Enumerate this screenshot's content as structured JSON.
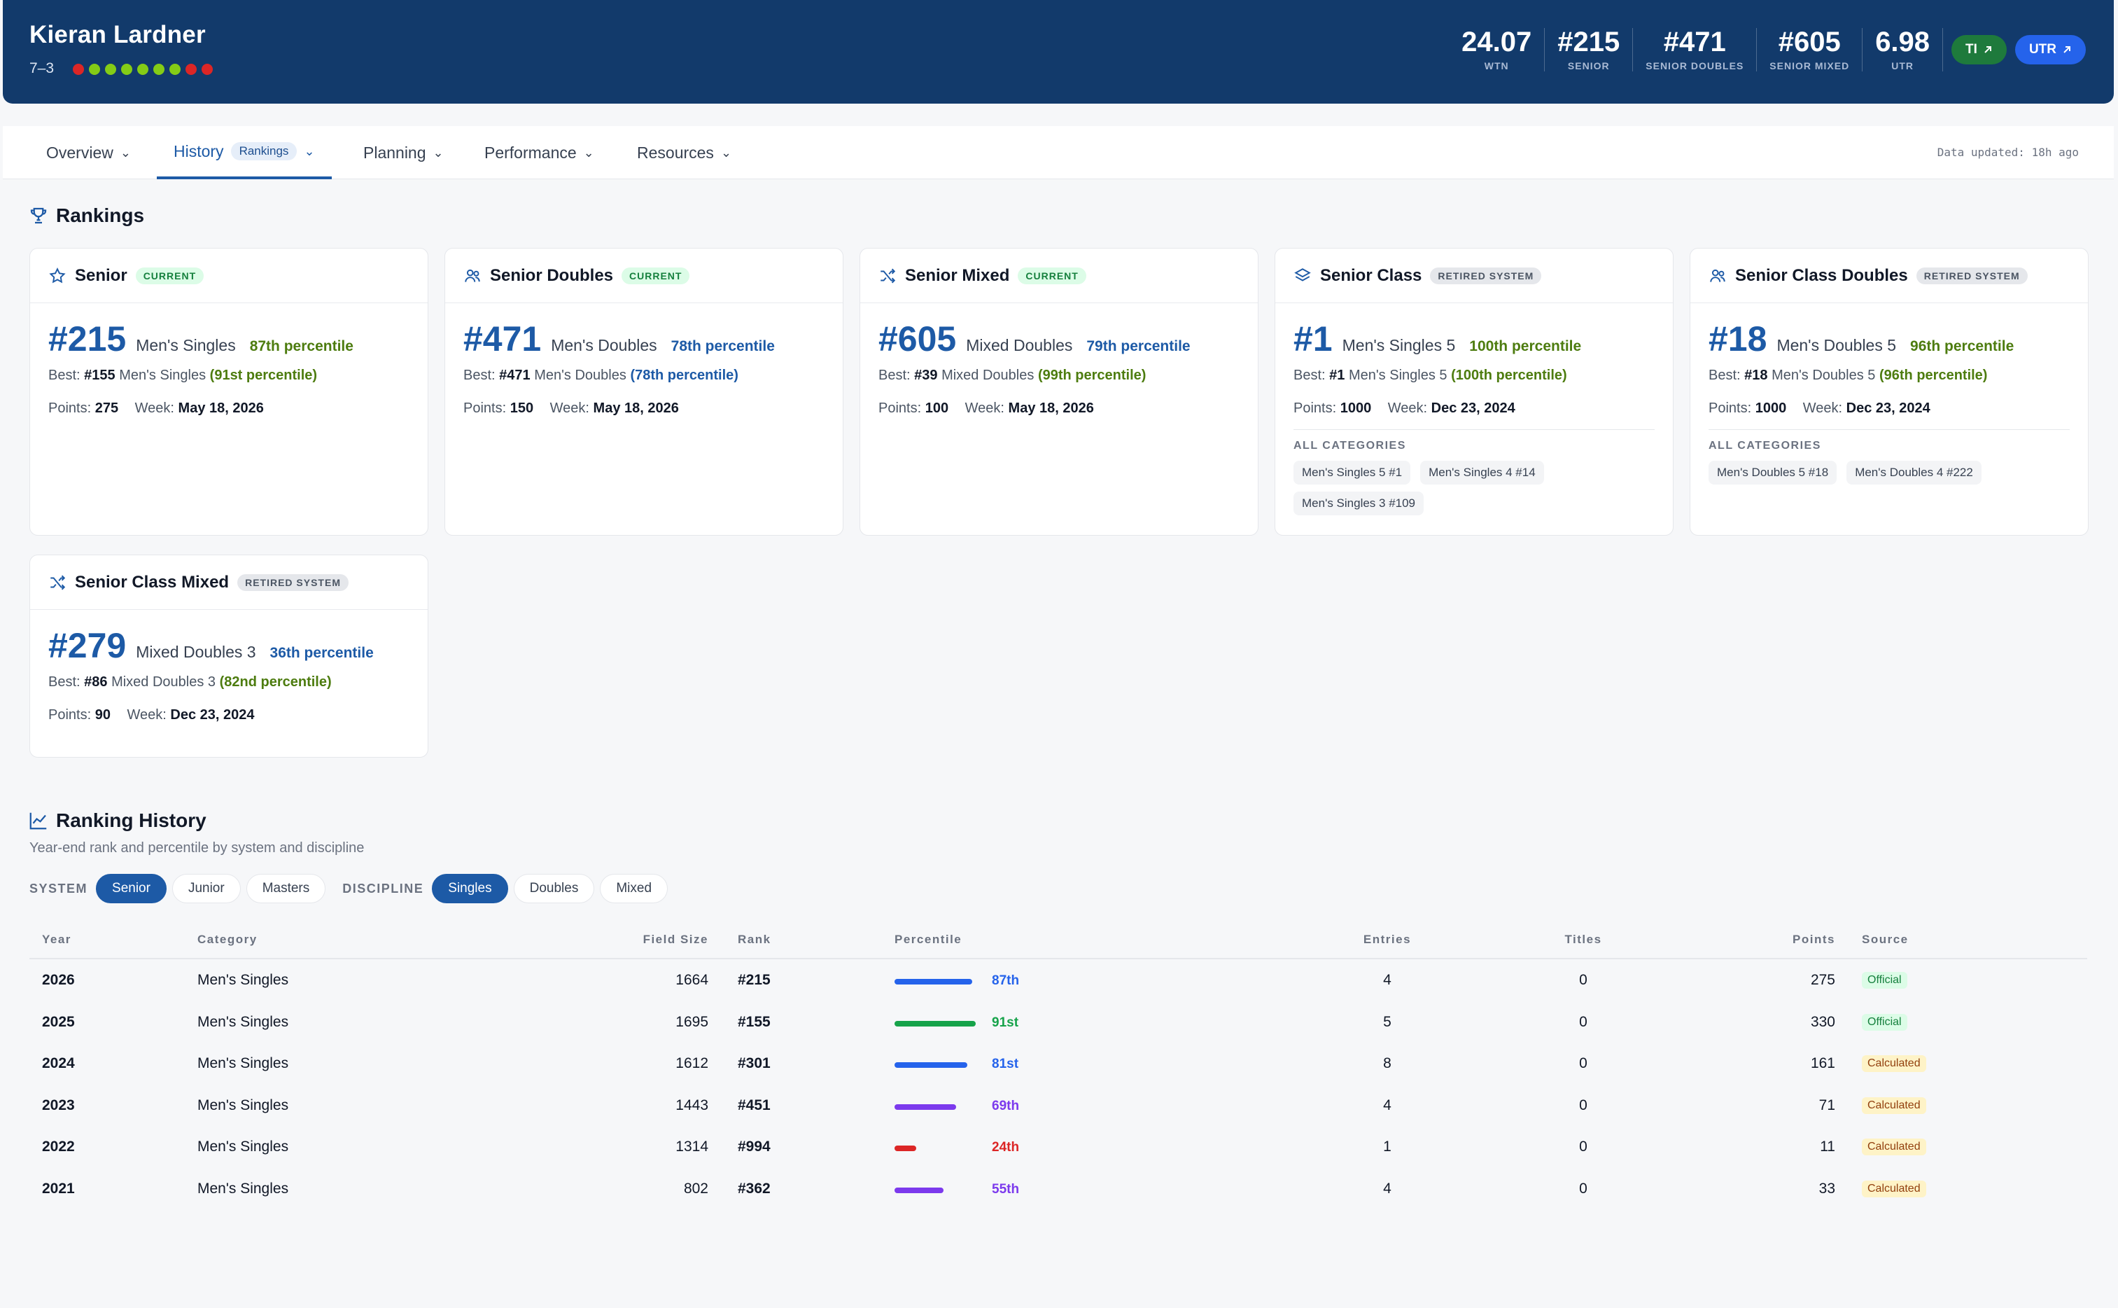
{
  "player": {
    "name": "Kieran Lardner",
    "record": "7–3",
    "form": [
      "#dc2626",
      "#84cc16",
      "#84cc16",
      "#84cc16",
      "#84cc16",
      "#84cc16",
      "#84cc16",
      "#dc2626",
      "#dc2626"
    ]
  },
  "header_stats": [
    {
      "value": "24.07",
      "label": "WTN"
    },
    {
      "value": "#215",
      "label": "Senior"
    },
    {
      "value": "#471",
      "label": "Senior Doubles"
    },
    {
      "value": "#605",
      "label": "Senior Mixed"
    },
    {
      "value": "6.98",
      "label": "UTR"
    }
  ],
  "external_buttons": [
    {
      "label": "TI",
      "icon": "arrow-up-right-icon",
      "color": "#1e7a3c"
    },
    {
      "label": "UTR",
      "icon": "arrow-up-right-icon",
      "color": "#2563eb"
    }
  ],
  "tabs": [
    {
      "label": "Overview"
    },
    {
      "label": "History",
      "sub": "Rankings"
    },
    {
      "label": "Planning"
    },
    {
      "label": "Performance"
    },
    {
      "label": "Resources"
    }
  ],
  "updated": "Data updated: 18h ago",
  "rankings_title": "Rankings",
  "cards": [
    {
      "title": "Senior",
      "badge": "Current",
      "rank": "#215",
      "category": "Men's Singles",
      "percentile": "87th percentile",
      "best_rank": "#155",
      "best_cat": "Men's Singles",
      "best_pct": "(91st percentile)",
      "points": "275",
      "week": "May 18, 2026"
    },
    {
      "title": "Senior Doubles",
      "badge": "Current",
      "rank": "#471",
      "category": "Men's Doubles",
      "percentile": "78th percentile",
      "best_rank": "#471",
      "best_cat": "Men's Doubles",
      "best_pct": "(78th percentile)",
      "points": "150",
      "week": "May 18, 2026"
    },
    {
      "title": "Senior Mixed",
      "badge": "Current",
      "rank": "#605",
      "category": "Mixed Doubles",
      "percentile": "79th percentile",
      "best_rank": "#39",
      "best_cat": "Mixed Doubles",
      "best_pct": "(99th percentile)",
      "points": "100",
      "week": "May 18, 2026"
    },
    {
      "title": "Senior Class",
      "badge": "Retired System",
      "rank": "#1",
      "category": "Men's Singles 5",
      "percentile": "100th percentile",
      "best_rank": "#1",
      "best_cat": "Men's Singles 5",
      "best_pct": "(100th percentile)",
      "points": "1000",
      "week": "Dec 23, 2024",
      "all_categories_label": "All Categories",
      "chips": [
        "Men's Singles 5 #1",
        "Men's Singles 4 #14",
        "Men's Singles 3 #109"
      ]
    },
    {
      "title": "Senior Class Doubles",
      "badge": "Retired System",
      "rank": "#18",
      "category": "Men's Doubles 5",
      "percentile": "96th percentile",
      "best_rank": "#18",
      "best_cat": "Men's Doubles 5",
      "best_pct": "(96th percentile)",
      "points": "1000",
      "week": "Dec 23, 2024",
      "all_categories_label": "All Categories",
      "chips": [
        "Men's Doubles 5 #18",
        "Men's Doubles 4 #222"
      ]
    },
    {
      "title": "Senior Class Mixed",
      "badge": "Retired System",
      "rank": "#279",
      "category": "Mixed Doubles 3",
      "percentile": "36th percentile",
      "best_rank": "#86",
      "best_cat": "Mixed Doubles 3",
      "best_pct": "(82nd percentile)",
      "points": "90",
      "week": "Dec 23, 2024"
    }
  ],
  "labels": {
    "best": "Best:",
    "points": "Points:",
    "week": "Week:"
  },
  "history": {
    "title": "Ranking History",
    "subtitle": "Year-end rank and percentile by system and discipline",
    "system_label": "System",
    "systems": [
      {
        "label": "Senior",
        "active": true
      },
      {
        "label": "Junior"
      },
      {
        "label": "Masters"
      }
    ],
    "discipline_label": "Discipline",
    "disciplines": [
      {
        "label": "Singles",
        "active": true
      },
      {
        "label": "Doubles"
      },
      {
        "label": "Mixed"
      }
    ],
    "columns": [
      "Year",
      "Category",
      "Field Size",
      "Rank",
      "Percentile",
      "Entries",
      "Titles",
      "Points",
      "Source"
    ],
    "rows": [
      {
        "year": "2026",
        "category": "Men's Singles",
        "field": "1664",
        "rank": "#215",
        "pct": 87,
        "pct_label": "87th",
        "color": "#2563eb",
        "entries": "4",
        "titles": "0",
        "points": "275",
        "source": "Official"
      },
      {
        "year": "2025",
        "category": "Men's Singles",
        "field": "1695",
        "rank": "#155",
        "pct": 91,
        "pct_label": "91st",
        "color": "#16a34a",
        "entries": "5",
        "titles": "0",
        "points": "330",
        "source": "Official"
      },
      {
        "year": "2024",
        "category": "Men's Singles",
        "field": "1612",
        "rank": "#301",
        "pct": 81,
        "pct_label": "81st",
        "color": "#2563eb",
        "entries": "8",
        "titles": "0",
        "points": "161",
        "source": "Calculated"
      },
      {
        "year": "2023",
        "category": "Men's Singles",
        "field": "1443",
        "rank": "#451",
        "pct": 69,
        "pct_label": "69th",
        "color": "#7c3aed",
        "entries": "4",
        "titles": "0",
        "points": "71",
        "source": "Calculated"
      },
      {
        "year": "2022",
        "category": "Men's Singles",
        "field": "1314",
        "rank": "#994",
        "pct": 24,
        "pct_label": "24th",
        "color": "#dc2626",
        "entries": "1",
        "titles": "0",
        "points": "11",
        "source": "Calculated"
      },
      {
        "year": "2021",
        "category": "Men's Singles",
        "field": "802",
        "rank": "#362",
        "pct": 55,
        "pct_label": "55th",
        "color": "#7c3aed",
        "entries": "4",
        "titles": "0",
        "points": "33",
        "source": "Calculated"
      }
    ]
  }
}
